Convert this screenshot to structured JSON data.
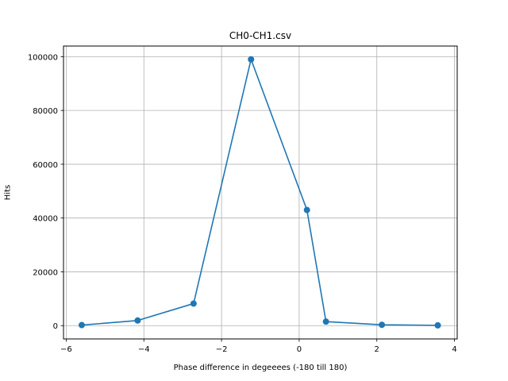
{
  "chart_data": {
    "type": "line",
    "title": "CH0-CH1.csv",
    "xlabel": "Phase difference in degeeees (-180 till 180)",
    "ylabel": "Hits",
    "xlim": [
      -6.07,
      4.07
    ],
    "ylim": [
      -4950,
      103950
    ],
    "xticks": [
      -6,
      -4,
      -2,
      0,
      2,
      4
    ],
    "xtick_labels": [
      "−6",
      "−4",
      "−2",
      "0",
      "2",
      "4"
    ],
    "yticks": [
      0,
      20000,
      40000,
      60000,
      80000,
      100000
    ],
    "ytick_labels": [
      "0",
      "20000",
      "40000",
      "60000",
      "80000",
      "100000"
    ],
    "grid": true,
    "series": [
      {
        "color": "#1f77b4",
        "marker": "circle",
        "x": [
          -5.6,
          -4.16,
          -2.72,
          -1.24,
          0.2,
          0.69,
          2.13,
          3.57
        ],
        "y": [
          200,
          1900,
          8200,
          99000,
          43000,
          1500,
          300,
          100
        ]
      }
    ]
  }
}
